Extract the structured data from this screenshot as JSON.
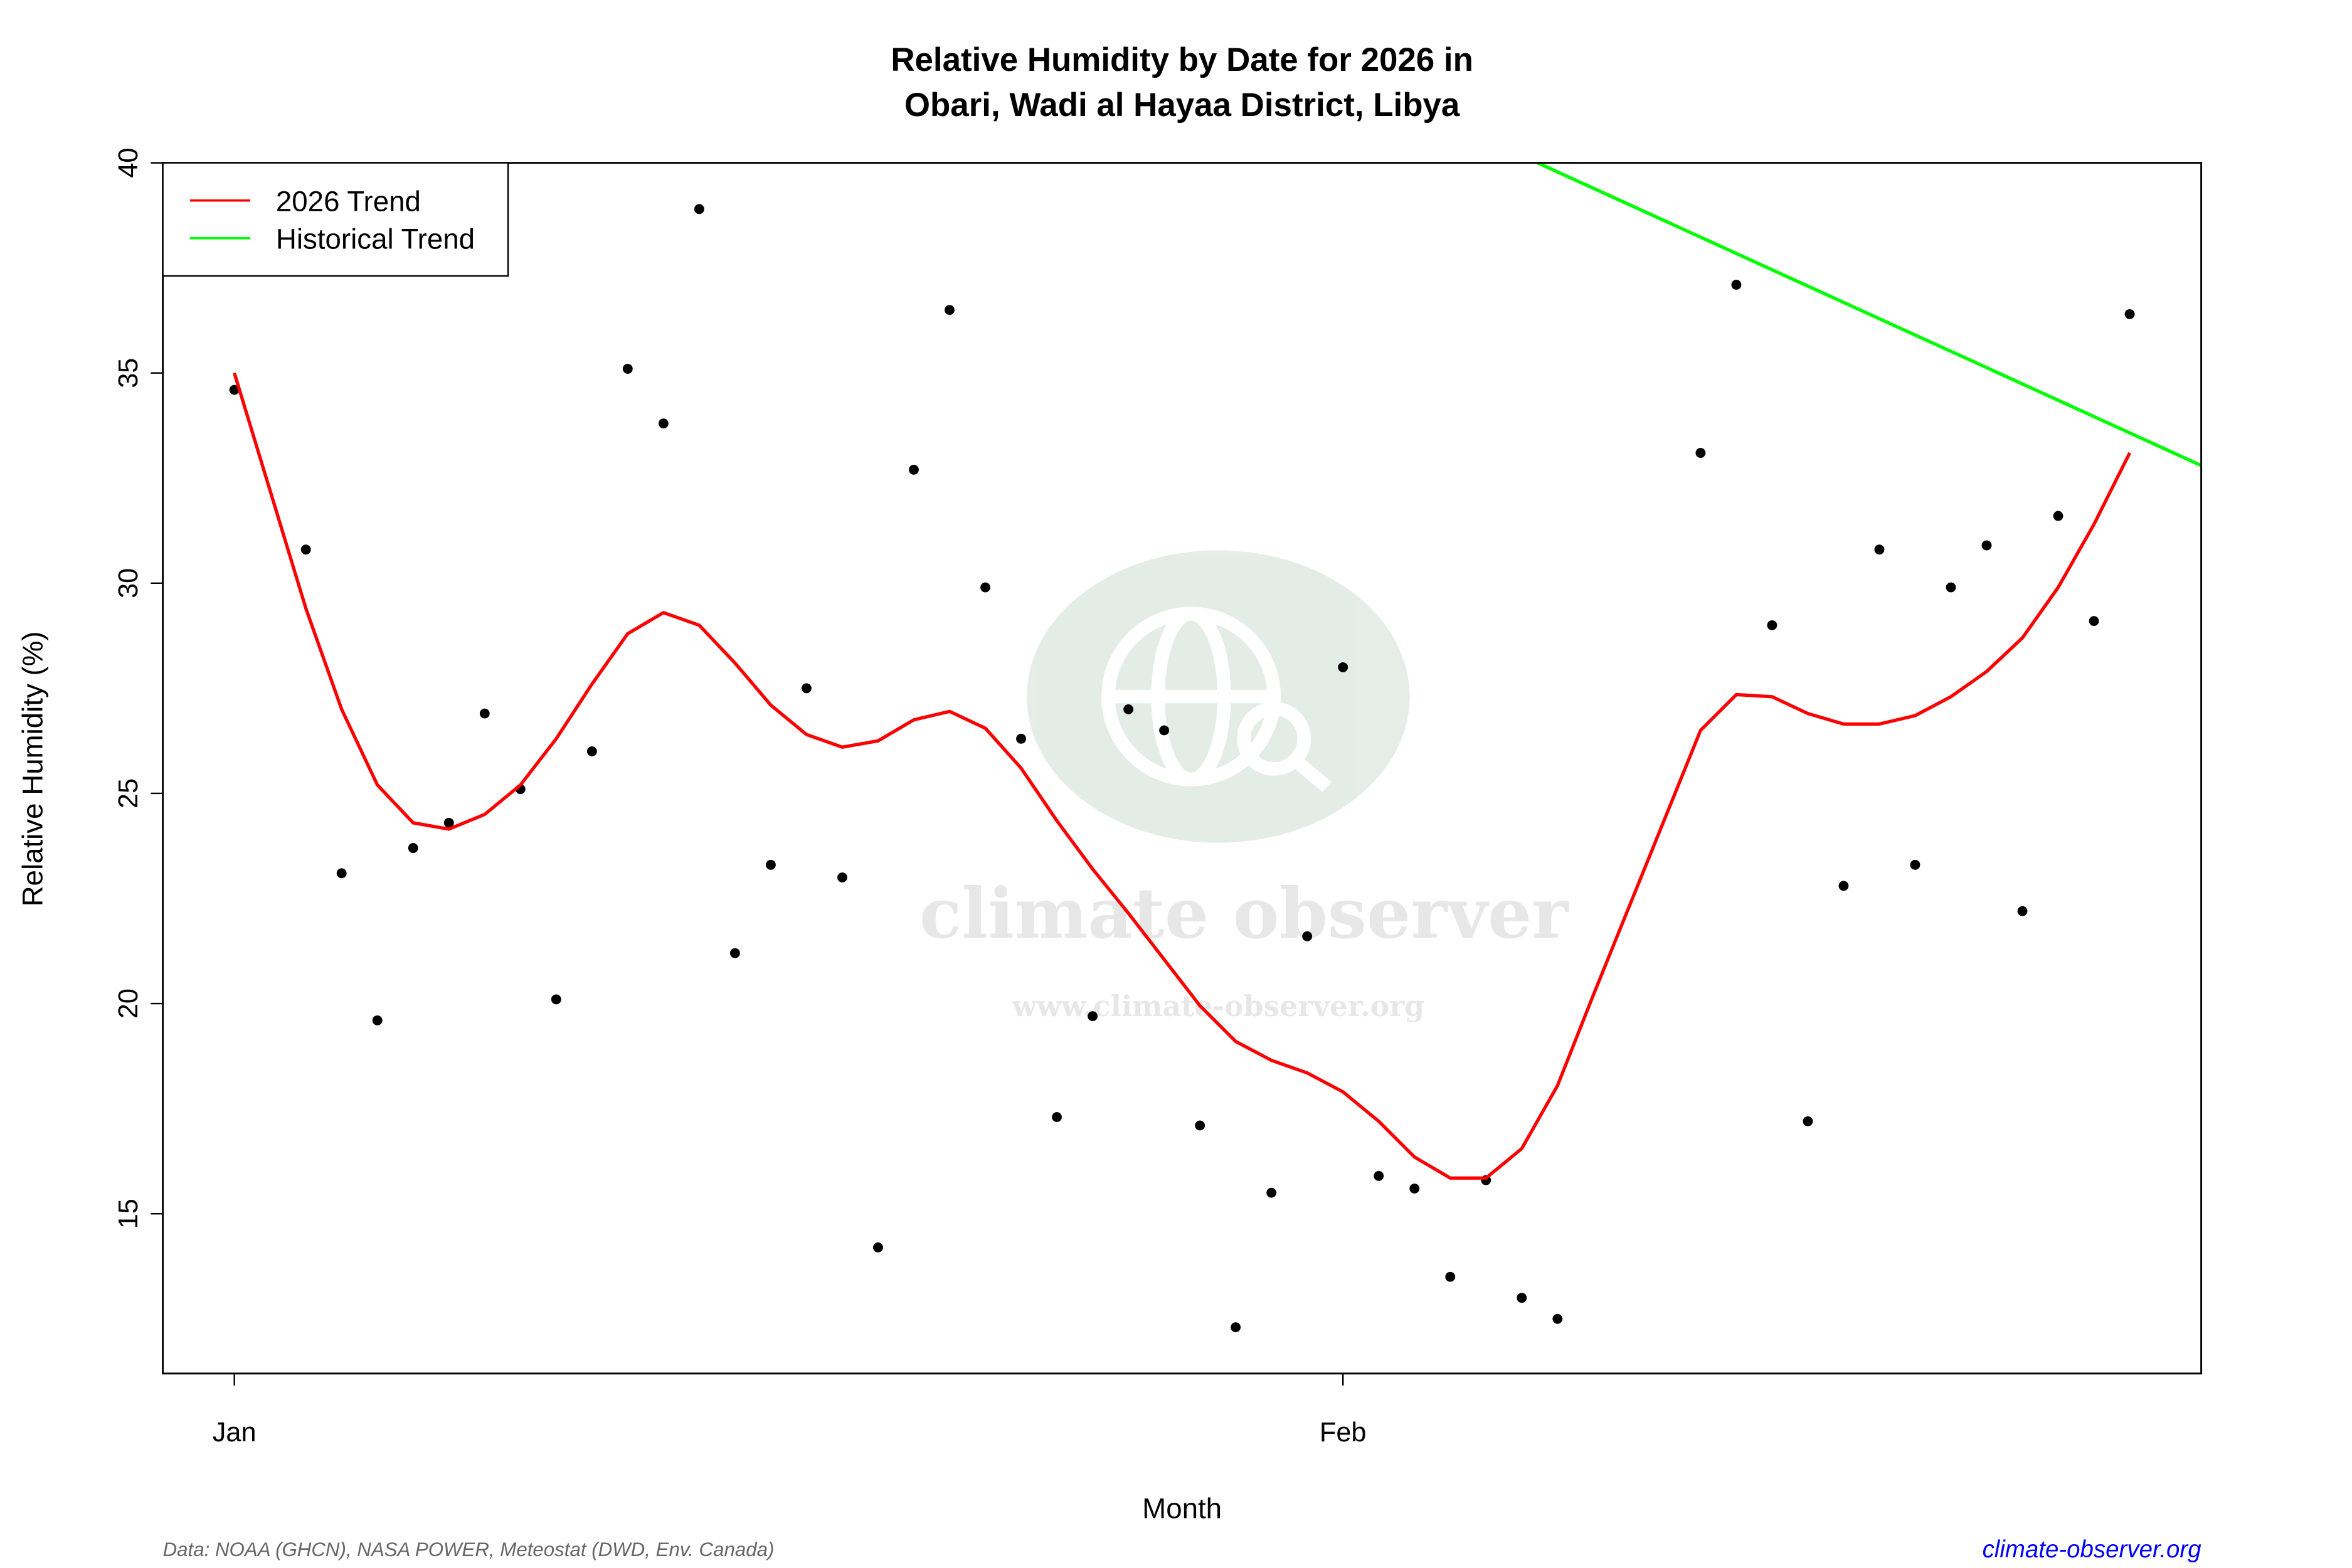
{
  "chart_data": {
    "type": "line",
    "title_line1": "Relative Humidity by Date for 2026 in",
    "title_line2": "Obari, Wadi al Hayaa District, Libya",
    "xlabel": "Month",
    "ylabel": "Relative Humidity (%)",
    "xlim": [
      "2025-12-30",
      "2026-02-25"
    ],
    "ylim": [
      11.2,
      40
    ],
    "x_ticks": [
      {
        "date": "2026-01-01",
        "label": "Jan"
      },
      {
        "date": "2026-02-01",
        "label": "Feb"
      }
    ],
    "y_ticks": [
      15,
      20,
      25,
      30,
      35,
      40
    ],
    "grid": false,
    "legend_position": "top-left",
    "legend": [
      {
        "label": "2026 Trend",
        "color": "#ff0000"
      },
      {
        "label": "Historical Trend",
        "color": "#00ff00"
      }
    ],
    "observations": [
      [
        "2026-01-01",
        34.6
      ],
      [
        "2026-01-03",
        30.8
      ],
      [
        "2026-01-04",
        23.1
      ],
      [
        "2026-01-05",
        19.6
      ],
      [
        "2026-01-06",
        23.7
      ],
      [
        "2026-01-07",
        24.3
      ],
      [
        "2026-01-08",
        26.9
      ],
      [
        "2026-01-09",
        25.1
      ],
      [
        "2026-01-10",
        20.1
      ],
      [
        "2026-01-11",
        26.0
      ],
      [
        "2026-01-12",
        35.1
      ],
      [
        "2026-01-13",
        33.8
      ],
      [
        "2026-01-14",
        38.9
      ],
      [
        "2026-01-15",
        21.2
      ],
      [
        "2026-01-16",
        23.3
      ],
      [
        "2026-01-17",
        27.5
      ],
      [
        "2026-01-18",
        23.0
      ],
      [
        "2026-01-19",
        14.2
      ],
      [
        "2026-01-20",
        32.7
      ],
      [
        "2026-01-21",
        36.5
      ],
      [
        "2026-01-22",
        29.9
      ],
      [
        "2026-01-23",
        26.3
      ],
      [
        "2026-01-24",
        17.3
      ],
      [
        "2026-01-25",
        19.7
      ],
      [
        "2026-01-26",
        27.0
      ],
      [
        "2026-01-27",
        26.5
      ],
      [
        "2026-01-28",
        17.1
      ],
      [
        "2026-01-29",
        12.3
      ],
      [
        "2026-01-30",
        15.5
      ],
      [
        "2026-01-31",
        21.6
      ],
      [
        "2026-02-01",
        28.0
      ],
      [
        "2026-02-02",
        15.9
      ],
      [
        "2026-02-03",
        15.6
      ],
      [
        "2026-02-04",
        13.5
      ],
      [
        "2026-02-05",
        15.8
      ],
      [
        "2026-02-06",
        13.0
      ],
      [
        "2026-02-07",
        12.5
      ],
      [
        "2026-02-11",
        33.1
      ],
      [
        "2026-02-12",
        37.1
      ],
      [
        "2026-02-13",
        29.0
      ],
      [
        "2026-02-14",
        17.2
      ],
      [
        "2026-02-15",
        22.8
      ],
      [
        "2026-02-16",
        30.8
      ],
      [
        "2026-02-17",
        23.3
      ],
      [
        "2026-02-18",
        29.9
      ],
      [
        "2026-02-19",
        30.9
      ],
      [
        "2026-02-20",
        22.2
      ],
      [
        "2026-02-21",
        31.6
      ],
      [
        "2026-02-22",
        29.1
      ],
      [
        "2026-02-23",
        36.4
      ]
    ],
    "series": [
      {
        "name": "2026 Trend",
        "color": "#ff0000",
        "start": "2026-01-01",
        "values": [
          35.0,
          32.2,
          29.4,
          27.0,
          25.2,
          24.3,
          24.15,
          24.5,
          25.2,
          26.3,
          27.6,
          28.8,
          29.3,
          29.0,
          28.1,
          27.1,
          26.4,
          26.1,
          26.25,
          26.75,
          26.95,
          26.55,
          25.6,
          24.35,
          23.2,
          22.15,
          21.05,
          19.95,
          19.1,
          18.65,
          18.35,
          17.9,
          17.2,
          16.35,
          15.85,
          15.85,
          16.55,
          18.05,
          20.2,
          22.3,
          24.4,
          26.5,
          27.35,
          27.3,
          26.9,
          26.65,
          26.65,
          26.85,
          27.3,
          27.9,
          28.7,
          29.9,
          31.4,
          33.1
        ]
      },
      {
        "name": "Historical Trend",
        "color": "#00ff00",
        "points": [
          [
            "2026-01-31",
            42.5
          ],
          [
            "2026-02-25",
            32.8
          ]
        ]
      }
    ]
  },
  "footer": {
    "source": "Data: NOAA (GHCN), NASA POWER, Meteostat (DWD, Env. Canada)",
    "link": "climate-observer.org"
  },
  "watermark": {
    "name": "climate observer",
    "url": "www.climate-observer.org"
  }
}
